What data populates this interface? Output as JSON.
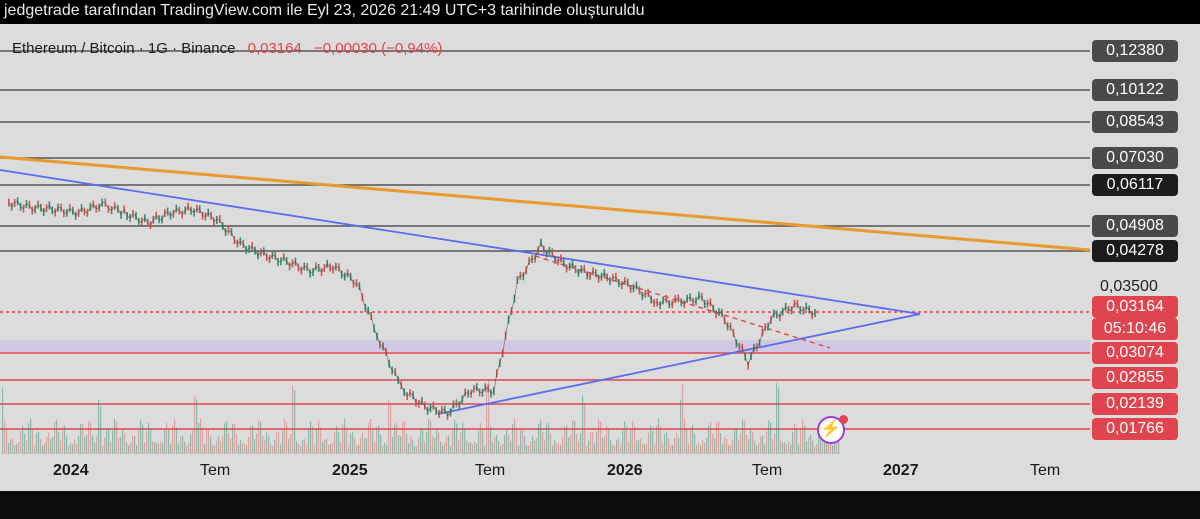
{
  "header": {
    "caption": "jedgetrade tarafından TradingView.com ile Eyl 23, 2026 21:49 UTC+3 tarihinde oluşturuldu"
  },
  "legend": {
    "symbol": "Ethereum / Bitcoin · 1G · Binance",
    "price": "0,03164",
    "change": "−0,00030 (−0,94%)"
  },
  "colors": {
    "background": "#dcdcdc",
    "up": "#2f8f6f",
    "down": "#d9534f",
    "orange_trend": "#e89a2c",
    "blue_trend": "#5b6cf0",
    "red_levels": "#e0454f",
    "gray_levels": "#555555"
  },
  "price_axis": {
    "levels": [
      {
        "label": "0,12380",
        "style": "gray"
      },
      {
        "label": "0,10122",
        "style": "gray"
      },
      {
        "label": "0,08543",
        "style": "gray"
      },
      {
        "label": "0,07030",
        "style": "gray"
      },
      {
        "label": "0,06117",
        "style": "dark"
      },
      {
        "label": "0,04908",
        "style": "gray"
      },
      {
        "label": "0,04278",
        "style": "dark"
      },
      {
        "label": "0,03500",
        "style": "plain"
      },
      {
        "label": "0,03164",
        "style": "red"
      },
      {
        "label": "05:10:46",
        "style": "red"
      },
      {
        "label": "0,03074",
        "style": "red"
      },
      {
        "label": "0,02855",
        "style": "red"
      },
      {
        "label": "0,02139",
        "style": "red"
      },
      {
        "label": "0,01766",
        "style": "red"
      }
    ]
  },
  "time_axis": {
    "labels": [
      "2024",
      "Tem",
      "2025",
      "Tem",
      "2026",
      "Tem",
      "2027",
      "Tem"
    ]
  },
  "chart_data": {
    "type": "line",
    "title": "Ethereum / Bitcoin · 1G · Binance",
    "series": [
      {
        "name": "ETH/BTC",
        "x": [
          "2023-10",
          "2023-11",
          "2023-12",
          "2024-01",
          "2024-02",
          "2024-03",
          "2024-04",
          "2024-05",
          "2024-06",
          "2024-07",
          "2024-08",
          "2024-09",
          "2024-10",
          "2024-11",
          "2024-12",
          "2025-01",
          "2025-02",
          "2025-03",
          "2025-04",
          "2025-05",
          "2025-06",
          "2025-07",
          "2025-08",
          "2025-09",
          "2025-10",
          "2025-11",
          "2025-12",
          "2026-01",
          "2026-02",
          "2026-03",
          "2026-04",
          "2026-05",
          "2026-06",
          "2026-07",
          "2026-08",
          "2026-09"
        ],
        "y": [
          0.056,
          0.0545,
          0.054,
          0.053,
          0.0555,
          0.053,
          0.05,
          0.053,
          0.054,
          0.051,
          0.0445,
          0.042,
          0.0405,
          0.0385,
          0.0395,
          0.036,
          0.031,
          0.026,
          0.021,
          0.02,
          0.0255,
          0.0255,
          0.036,
          0.044,
          0.04,
          0.038,
          0.037,
          0.035,
          0.033,
          0.033,
          0.0335,
          0.0315,
          0.03,
          0.0315,
          0.0325,
          0.0316
        ]
      }
    ],
    "horizontal_levels": [
      0.1238,
      0.10122,
      0.08543,
      0.0703,
      0.06117,
      0.04908,
      0.04278,
      0.03164,
      0.03074,
      0.02855,
      0.02139,
      0.01766
    ],
    "current_price": 0.03164,
    "x_tick_labels": [
      "2024",
      "Tem",
      "2025",
      "Tem",
      "2026",
      "Tem",
      "2027",
      "Tem"
    ],
    "grid": false
  }
}
